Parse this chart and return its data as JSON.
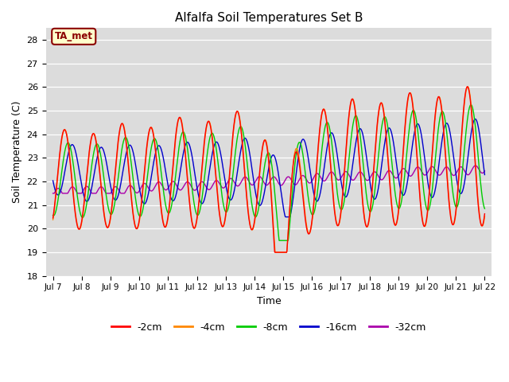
{
  "title": "Alfalfa Soil Temperatures Set B",
  "xlabel": "Time",
  "ylabel": "Soil Temperature (C)",
  "ylim": [
    18.0,
    28.5
  ],
  "yticks": [
    18.0,
    19.0,
    20.0,
    21.0,
    22.0,
    23.0,
    24.0,
    25.0,
    26.0,
    27.0,
    28.0
  ],
  "bg_color": "#dcdcdc",
  "fig_color": "#ffffff",
  "annotation_text": "TA_met",
  "annotation_bg": "#ffffcc",
  "annotation_border": "#8b0000",
  "line_colors": {
    "-2cm": "#ff0000",
    "-4cm": "#ff8800",
    "-8cm": "#00cc00",
    "-16cm": "#0000cc",
    "-32cm": "#aa00aa"
  },
  "legend_labels": [
    "-2cm",
    "-4cm",
    "-8cm",
    "-16cm",
    "-32cm"
  ],
  "x_tick_labels": [
    "Jul 7",
    "Jul 8",
    "Jul 9",
    "Jul 10",
    "Jul 11",
    "Jul 12",
    "Jul 13",
    "Jul 14",
    "Jul 15",
    "Jul 16",
    "Jul 17",
    "Jul 18",
    "Jul 19",
    "Jul 20",
    "Jul 21",
    "Jul 22"
  ]
}
